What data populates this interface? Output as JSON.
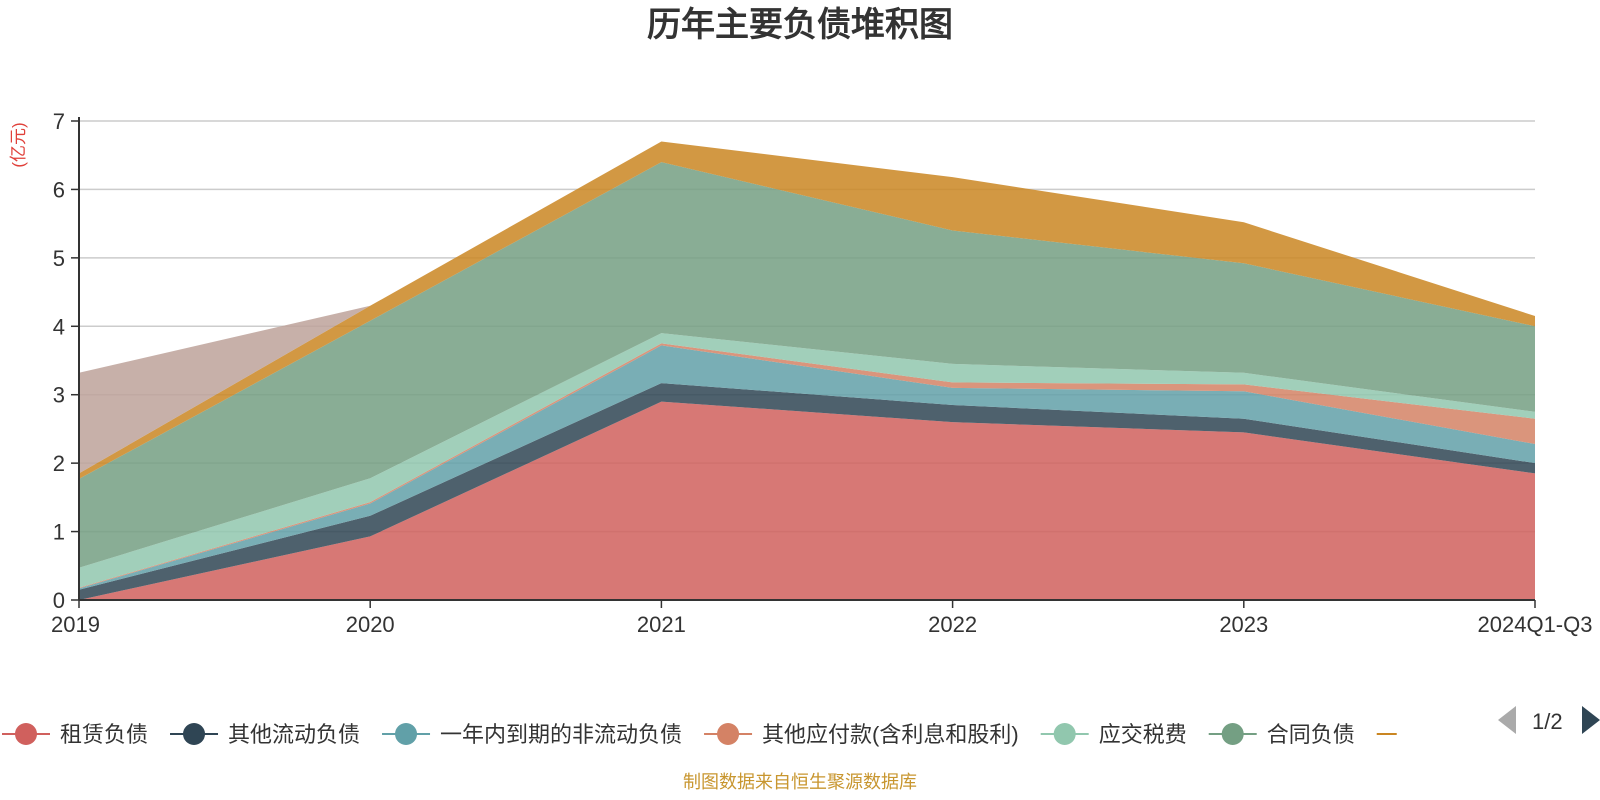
{
  "chart_data": {
    "type": "area",
    "stacked": true,
    "title": "历年主要负债堆积图",
    "unit_label": "(亿元)",
    "x": [
      "2019",
      "2020",
      "2021",
      "2022",
      "2023",
      "2024Q1-Q3"
    ],
    "ylim": [
      0,
      7
    ],
    "yticks": [
      0,
      1,
      2,
      3,
      4,
      5,
      6,
      7
    ],
    "grid": true,
    "legend_position": "bottom",
    "legend_page": "1/2",
    "series": [
      {
        "name": "租赁负债",
        "color": "#d0605d",
        "values": [
          0.0,
          0.93,
          2.9,
          2.6,
          2.45,
          1.85
        ]
      },
      {
        "name": "其他流动负债",
        "color": "#2f4554",
        "values": [
          0.15,
          0.3,
          0.27,
          0.25,
          0.2,
          0.15
        ]
      },
      {
        "name": "一年内到期的非流动负债",
        "color": "#61a0a8",
        "values": [
          0.02,
          0.18,
          0.55,
          0.25,
          0.4,
          0.28
        ]
      },
      {
        "name": "其他应付款(含利息和股利)",
        "color": "#d48265",
        "values": [
          0.01,
          0.02,
          0.03,
          0.08,
          0.1,
          0.37
        ]
      },
      {
        "name": "应交税费",
        "color": "#91c7ae",
        "values": [
          0.29,
          0.35,
          0.15,
          0.27,
          0.17,
          0.1
        ]
      },
      {
        "name": "合同负债",
        "color": "#749f83",
        "values": [
          1.3,
          2.3,
          2.5,
          1.95,
          1.6,
          1.25
        ]
      },
      {
        "name": "",
        "color": "#ca8622",
        "values": [
          0.08,
          0.22,
          0.3,
          0.78,
          0.6,
          0.15
        ]
      },
      {
        "name": "",
        "color": "#bda29a",
        "values": [
          1.47,
          0.0,
          0.0,
          0.0,
          0.0,
          0.0
        ]
      }
    ]
  },
  "footer": {
    "source": "制图数据来自恒生聚源数据库"
  }
}
